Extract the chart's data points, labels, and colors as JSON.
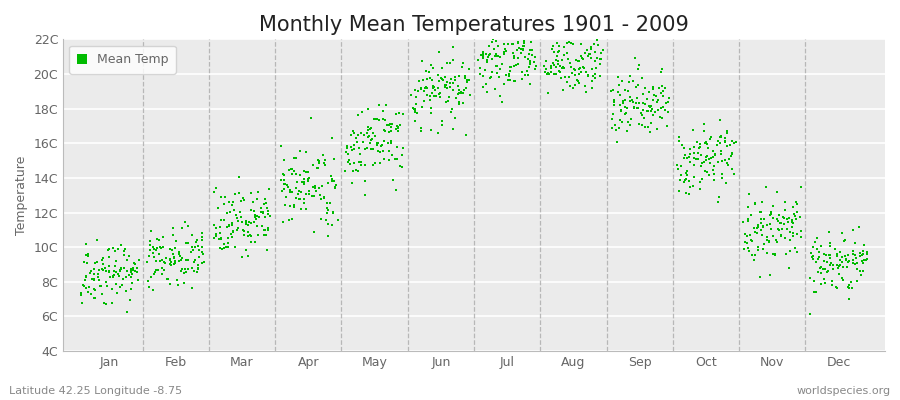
{
  "title": "Monthly Mean Temperatures 1901 - 2009",
  "ylabel": "Temperature",
  "subtitle_left": "Latitude 42.25 Longitude -8.75",
  "subtitle_right": "worldspecies.org",
  "legend_label": "Mean Temp",
  "dot_color": "#00bb00",
  "background_color": "#ffffff",
  "plot_bg_color": "#ebebeb",
  "ylim": [
    4,
    22
  ],
  "yticks": [
    4,
    6,
    8,
    10,
    12,
    14,
    16,
    18,
    20,
    22
  ],
  "ytick_labels": [
    "4C",
    "6C",
    "8C",
    "10C",
    "12C",
    "14C",
    "16C",
    "18C",
    "20C",
    "22C"
  ],
  "month_names": [
    "Jan",
    "Feb",
    "Mar",
    "Apr",
    "May",
    "Jun",
    "Jul",
    "Aug",
    "Sep",
    "Oct",
    "Nov",
    "Dec"
  ],
  "month_means": [
    8.5,
    9.5,
    11.5,
    13.5,
    16.0,
    19.0,
    20.8,
    20.5,
    18.5,
    15.0,
    11.0,
    9.0
  ],
  "month_stds": [
    0.9,
    0.9,
    1.0,
    1.1,
    1.2,
    1.0,
    0.8,
    0.8,
    0.9,
    1.0,
    1.0,
    0.9
  ],
  "n_years": 109,
  "title_fontsize": 15,
  "axis_fontsize": 9,
  "tick_fontsize": 9,
  "legend_fontsize": 9,
  "dot_size": 3,
  "grid_color": "#ffffff",
  "dashed_line_color": "#aaaaaa",
  "spine_color": "#bbbbbb",
  "text_color": "#666666"
}
